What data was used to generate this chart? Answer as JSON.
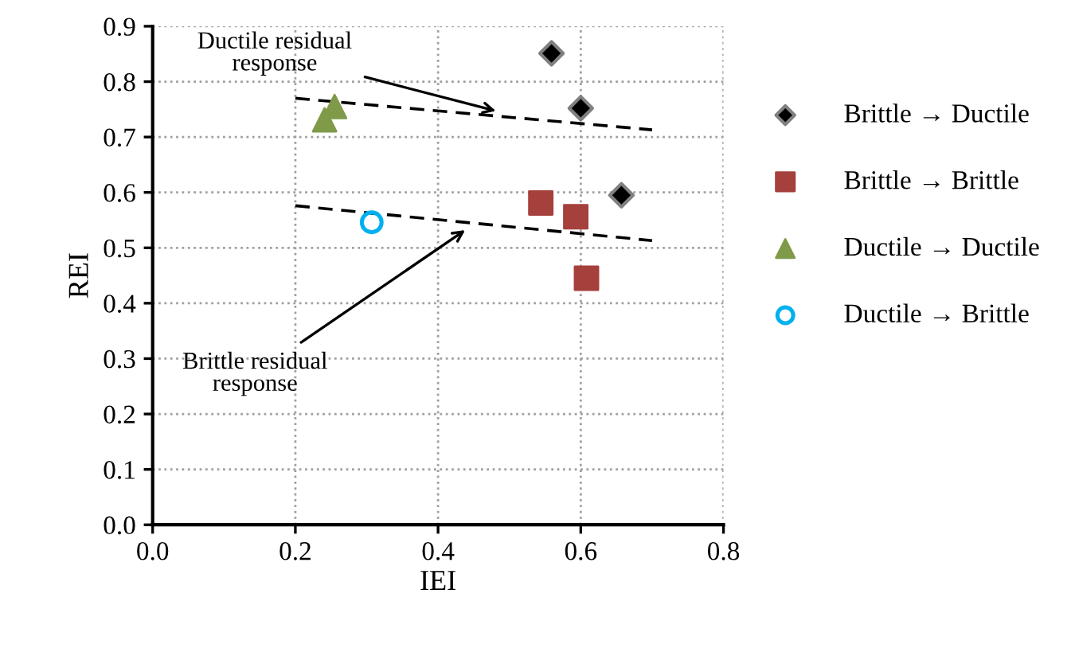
{
  "chart_data": {
    "type": "scatter",
    "xlabel": "IEI",
    "ylabel": "REI",
    "xlim": [
      0.0,
      0.8
    ],
    "xticks": [
      {
        "value": 0.0,
        "label": "0.0"
      },
      0.2,
      0.4,
      0.6,
      0.8
    ],
    "ylim": [
      0.0,
      0.9
    ],
    "yticks": [
      {
        "value": 0.0,
        "label": "0.0"
      },
      0.1,
      0.2,
      0.3,
      0.4,
      0.5,
      0.6,
      0.7,
      0.8,
      0.9
    ],
    "grid": true,
    "legend": "right",
    "series": [
      {
        "name": "Brittle → Ductile",
        "color": "#000000",
        "marker": "diamond",
        "x": [
          0.559,
          0.6,
          0.657
        ],
        "values": [
          0.851,
          0.752,
          0.595
        ]
      },
      {
        "name": "Brittle → Brittle",
        "color": "#a5403d",
        "marker": "square",
        "x": [
          0.544,
          0.593,
          0.608
        ],
        "values": [
          0.581,
          0.556,
          0.445
        ]
      },
      {
        "name": "Ductile → Ductile",
        "color": "#7f9a48",
        "marker": "triangle",
        "x": [
          0.241,
          0.255
        ],
        "values": [
          0.731,
          0.755
        ]
      },
      {
        "name": "Ductile → Brittle",
        "color": "#00b0f0",
        "marker": "circle",
        "x": [
          0.307
        ],
        "values": [
          0.546
        ]
      },
      {
        "type": "line",
        "color": "#000000",
        "line_style": "dashed",
        "marker": "none",
        "x": [
          0.2,
          0.7
        ],
        "values": [
          0.77,
          0.713
        ]
      },
      {
        "type": "line",
        "color": "#000000",
        "line_style": "dashed",
        "marker": "none",
        "x": [
          0.2,
          0.7
        ],
        "values": [
          0.576,
          0.513
        ]
      }
    ],
    "annotations": [
      {
        "text": "Ductile residual\nresponse",
        "x": 0.481,
        "y": 0.747
      },
      {
        "text": "Brittle residual\nresponse",
        "x": 0.438,
        "y": 0.532
      }
    ]
  }
}
